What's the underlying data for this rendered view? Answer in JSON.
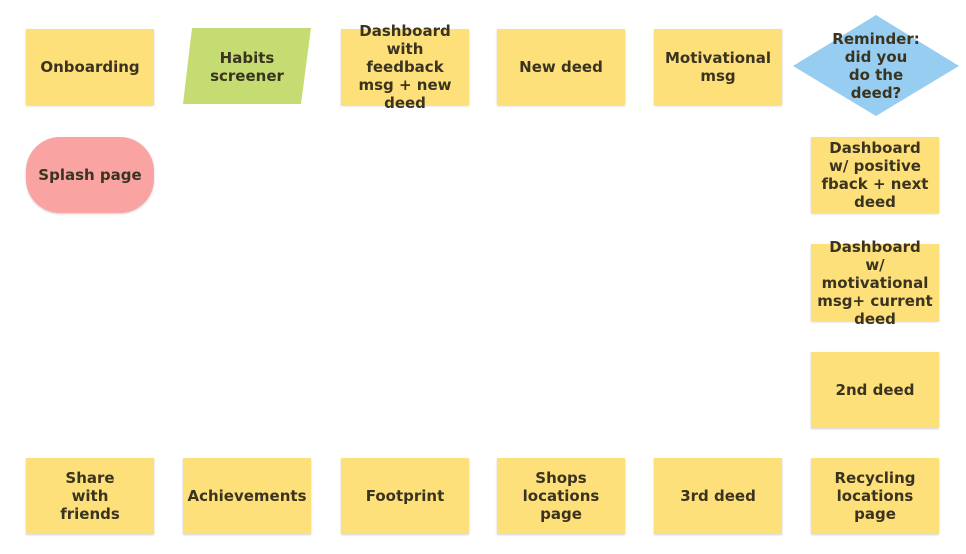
{
  "colors": {
    "sticky": "#fde07a",
    "parallelogram": "#c5dc72",
    "decision": "#97cdf1",
    "terminal": "#f9a3a3",
    "text": "#3a3320"
  },
  "nodes": {
    "onboarding": "Onboarding",
    "habits_screener": "Habits screener",
    "dashboard_feedback": "Dashboard with feedback msg + new deed",
    "new_deed": "New deed",
    "motivational_msg": "Motivational msg",
    "reminder": "Reminder: did you do the deed?",
    "splash_page": "Splash page",
    "dashboard_positive": "Dashboard w/ positive fback + next deed",
    "dashboard_motivational": "Dashboard w/ motivational msg+ current deed",
    "second_deed": "2nd deed",
    "share_with_friends": "Share with friends",
    "achievements": "Achievements",
    "footprint": "Footprint",
    "shops_locations": "Shops locations page",
    "third_deed": "3rd deed",
    "recycling_locations": "Recycling locations page"
  }
}
